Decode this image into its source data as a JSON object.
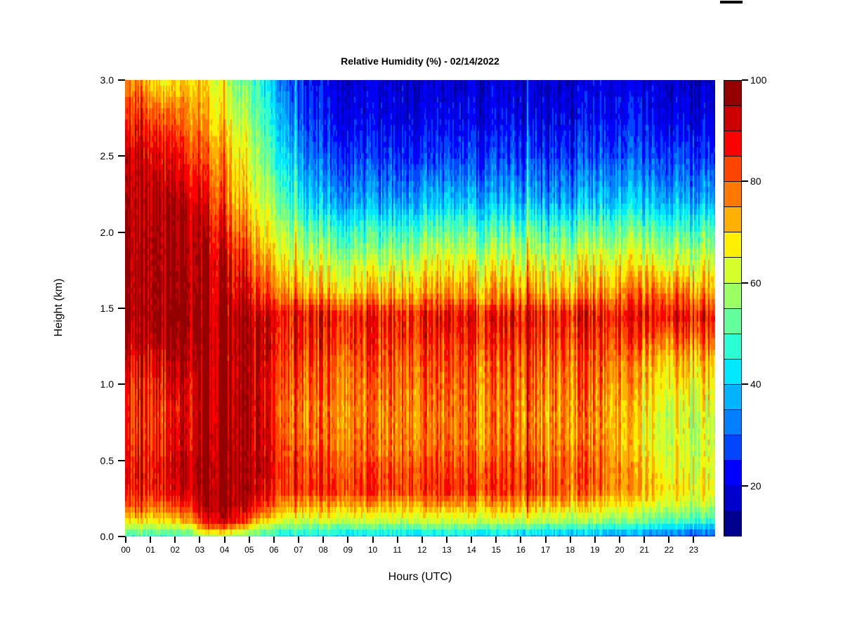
{
  "page": {
    "background": "#ffffff"
  },
  "decorations": {
    "top_mark": {
      "present": true,
      "color": "#000000"
    }
  },
  "chart_data": {
    "type": "heatmap",
    "title": "Relative Humidity (%) - 02/14/2022",
    "xlabel": "Hours (UTC)",
    "ylabel": "Height (km)",
    "xlim_hours": [
      0,
      24
    ],
    "ylim_km": [
      0,
      3
    ],
    "grid": false,
    "x_tick_labels": [
      "00",
      "01",
      "02",
      "03",
      "04",
      "05",
      "06",
      "07",
      "08",
      "09",
      "10",
      "11",
      "12",
      "13",
      "14",
      "15",
      "16",
      "17",
      "18",
      "19",
      "20",
      "21",
      "22",
      "23"
    ],
    "y_tick_values_km": [
      3.0,
      2.5,
      2.0,
      1.5,
      1.0,
      0.5,
      0.0
    ],
    "y_tick_labels": [
      "3.0",
      "2.5",
      "2.0",
      "1.5",
      "1.0",
      "0.5",
      "0.0"
    ],
    "heights_km": [
      3.0,
      2.75,
      2.5,
      2.2,
      2.0,
      1.8,
      1.6,
      1.45,
      1.3,
      1.15,
      1.0,
      0.8,
      0.6,
      0.45,
      0.3,
      0.2,
      0.1,
      0.05,
      0.0
    ],
    "hours": [
      0,
      1,
      2,
      3,
      4,
      5,
      6,
      7,
      8,
      9,
      10,
      11,
      12,
      13,
      14,
      15,
      16,
      17,
      18,
      19,
      20,
      21,
      22,
      23
    ],
    "values_percent_rows_top_to_bottom": [
      [
        76,
        64,
        70,
        66,
        56,
        46,
        31,
        22,
        20,
        19,
        18,
        18,
        18,
        18,
        18,
        19,
        18,
        18,
        19,
        20,
        19,
        18,
        17,
        16
      ],
      [
        86,
        80,
        77,
        72,
        62,
        51,
        36,
        25,
        22,
        21,
        20,
        20,
        21,
        21,
        20,
        21,
        21,
        21,
        22,
        23,
        22,
        21,
        20,
        19
      ],
      [
        93,
        89,
        85,
        78,
        68,
        56,
        42,
        30,
        27,
        26,
        25,
        25,
        26,
        27,
        26,
        27,
        27,
        26,
        28,
        29,
        28,
        27,
        27,
        25
      ],
      [
        96,
        95,
        93,
        86,
        74,
        62,
        52,
        40,
        37,
        36,
        35,
        36,
        38,
        39,
        37,
        38,
        38,
        37,
        39,
        40,
        39,
        38,
        37,
        36
      ],
      [
        97,
        96,
        95,
        92,
        80,
        68,
        60,
        52,
        50,
        49,
        48,
        50,
        52,
        53,
        51,
        52,
        52,
        51,
        53,
        54,
        53,
        52,
        51,
        50
      ],
      [
        98,
        97,
        96,
        95,
        88,
        76,
        68,
        62,
        61,
        60,
        60,
        62,
        64,
        65,
        63,
        64,
        64,
        63,
        65,
        66,
        65,
        64,
        63,
        62
      ],
      [
        99,
        98,
        97,
        96,
        92,
        84,
        77,
        72,
        72,
        71,
        71,
        73,
        74,
        75,
        73,
        74,
        74,
        73,
        75,
        76,
        76,
        79,
        77,
        73
      ],
      [
        99,
        99,
        98,
        97,
        96,
        93,
        89,
        87,
        88,
        87,
        86,
        87,
        88,
        89,
        87,
        88,
        88,
        87,
        89,
        88,
        86,
        88,
        89,
        87
      ],
      [
        98,
        98,
        98,
        97,
        96,
        94,
        87,
        85,
        86,
        85,
        84,
        85,
        85,
        86,
        84,
        85,
        85,
        84,
        85,
        84,
        81,
        80,
        81,
        80
      ],
      [
        92,
        90,
        95,
        97,
        96,
        93,
        84,
        81,
        82,
        81,
        80,
        81,
        81,
        82,
        80,
        81,
        81,
        80,
        81,
        80,
        75,
        71,
        71,
        70
      ],
      [
        88,
        86,
        92,
        97,
        96,
        92,
        82,
        79,
        80,
        79,
        78,
        79,
        79,
        80,
        78,
        79,
        79,
        78,
        79,
        78,
        72,
        68,
        67,
        66
      ],
      [
        86,
        84,
        90,
        97,
        96,
        92,
        80,
        77,
        78,
        77,
        76,
        77,
        77,
        78,
        76,
        77,
        77,
        76,
        77,
        76,
        68,
        64,
        63,
        62
      ],
      [
        87,
        85,
        92,
        97,
        96,
        93,
        82,
        78,
        79,
        78,
        77,
        78,
        78,
        79,
        77,
        78,
        78,
        77,
        78,
        76,
        68,
        64,
        62,
        61
      ],
      [
        89,
        88,
        94,
        98,
        97,
        94,
        85,
        82,
        83,
        82,
        81,
        82,
        82,
        83,
        81,
        82,
        82,
        81,
        81,
        79,
        72,
        67,
        64,
        63
      ],
      [
        88,
        87,
        93,
        98,
        97,
        92,
        84,
        84,
        85,
        84,
        83,
        84,
        84,
        85,
        83,
        84,
        83,
        82,
        81,
        78,
        73,
        70,
        67,
        65
      ],
      [
        80,
        79,
        85,
        97,
        95,
        85,
        74,
        73,
        74,
        73,
        72,
        73,
        73,
        74,
        72,
        73,
        72,
        71,
        70,
        68,
        65,
        63,
        61,
        59
      ],
      [
        68,
        66,
        72,
        92,
        88,
        70,
        62,
        61,
        62,
        61,
        60,
        61,
        61,
        62,
        60,
        61,
        60,
        59,
        58,
        56,
        54,
        52,
        50,
        48
      ],
      [
        58,
        56,
        60,
        80,
        72,
        58,
        52,
        51,
        52,
        51,
        50,
        51,
        51,
        52,
        50,
        50,
        49,
        48,
        47,
        45,
        43,
        41,
        39,
        37
      ],
      [
        48,
        46,
        50,
        60,
        55,
        48,
        43,
        42,
        42,
        41,
        40,
        40,
        40,
        40,
        38,
        38,
        37,
        36,
        35,
        33,
        31,
        29,
        28,
        26
      ]
    ],
    "colorbar": {
      "position": "right",
      "min": 10,
      "max": 100,
      "step": 5,
      "tick_values": [
        100,
        80,
        60,
        40,
        20
      ],
      "tick_labels": [
        "100",
        "80",
        "60",
        "40",
        "20"
      ],
      "palette_low_to_high": [
        "#00008F",
        "#0000CC",
        "#0000FF",
        "#0045FF",
        "#0080FF",
        "#00B4FF",
        "#00E8FF",
        "#2BFFD4",
        "#63FF9C",
        "#9CFF63",
        "#D4FF2B",
        "#FFF000",
        "#FFB000",
        "#FF7800",
        "#FF4400",
        "#FF0000",
        "#CC0000",
        "#940000"
      ]
    }
  }
}
